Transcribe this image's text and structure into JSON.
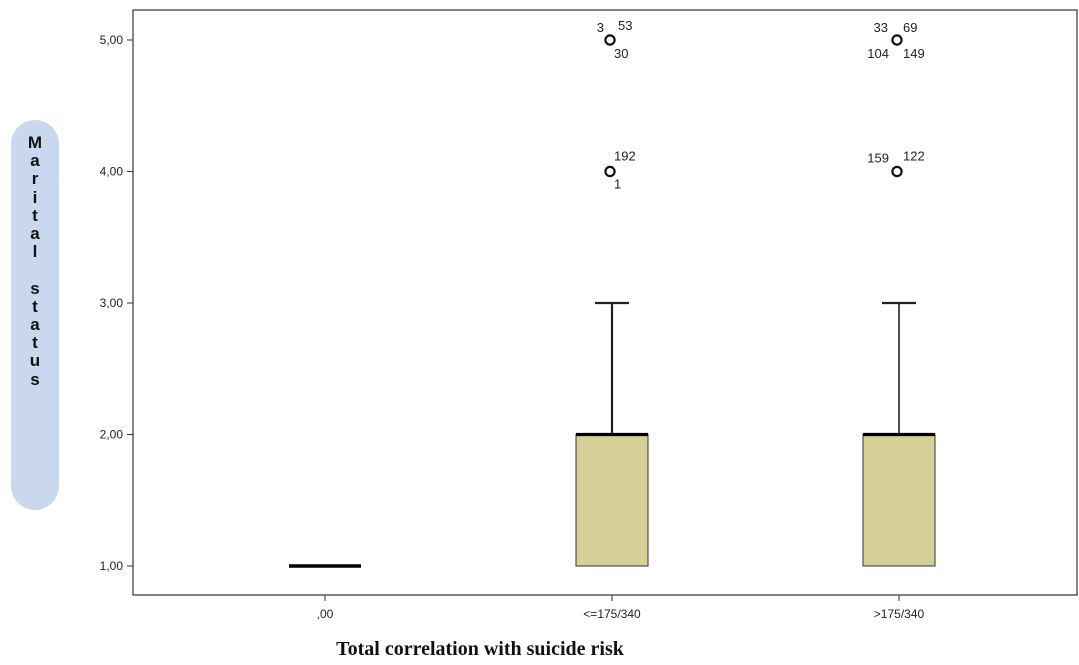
{
  "chart_data": {
    "type": "boxplot",
    "xlabel": "Total correlation with suicide risk",
    "ylabel": "Marital status",
    "ylim": [
      1,
      5
    ],
    "yticks": [
      "1,00",
      "2,00",
      "3,00",
      "4,00",
      "5,00"
    ],
    "ytick_values": [
      1,
      2,
      3,
      4,
      5
    ],
    "categories": [
      ",00",
      "<=175/340",
      ">175/340"
    ],
    "box_color": "#d6cf97",
    "boxes": [
      {
        "category": ",00",
        "min": 1,
        "q1": 1,
        "median": 1,
        "q3": 1,
        "max": 1,
        "outliers": []
      },
      {
        "category": "<=175/340",
        "min": 1,
        "q1": 1,
        "median": 2,
        "q3": 2,
        "max": 3,
        "outliers": [
          {
            "y": 5,
            "labels": [
              "3",
              "53",
              "30"
            ]
          },
          {
            "y": 4,
            "labels": [
              "192",
              "1"
            ]
          }
        ]
      },
      {
        "category": ">175/340",
        "min": 1,
        "q1": 1,
        "median": 2,
        "q3": 2,
        "max": 3,
        "outliers": [
          {
            "y": 5,
            "labels": [
              "33",
              "69",
              "104",
              "149"
            ]
          },
          {
            "y": 4,
            "labels": [
              "159",
              "122"
            ]
          }
        ]
      }
    ]
  }
}
